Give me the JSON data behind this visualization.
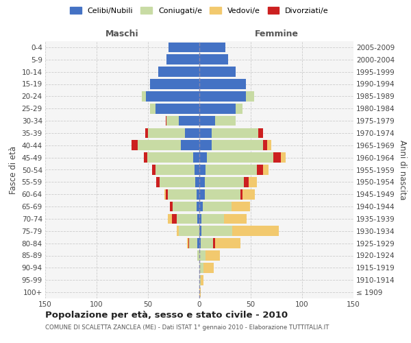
{
  "age_groups": [
    "100+",
    "95-99",
    "90-94",
    "85-89",
    "80-84",
    "75-79",
    "70-74",
    "65-69",
    "60-64",
    "55-59",
    "50-54",
    "45-49",
    "40-44",
    "35-39",
    "30-34",
    "25-29",
    "20-24",
    "15-19",
    "10-14",
    "5-9",
    "0-4"
  ],
  "birth_years": [
    "≤ 1909",
    "1910-1914",
    "1915-1919",
    "1920-1924",
    "1925-1929",
    "1930-1934",
    "1935-1939",
    "1940-1944",
    "1945-1949",
    "1950-1954",
    "1955-1959",
    "1960-1964",
    "1965-1969",
    "1970-1974",
    "1975-1979",
    "1980-1984",
    "1985-1989",
    "1990-1994",
    "1995-1999",
    "2000-2004",
    "2005-2009"
  ],
  "male": {
    "celibi": [
      0,
      0,
      0,
      0,
      2,
      0,
      2,
      3,
      3,
      4,
      5,
      6,
      18,
      14,
      20,
      43,
      52,
      48,
      40,
      32,
      30
    ],
    "coniugati": [
      0,
      0,
      0,
      2,
      8,
      20,
      20,
      23,
      28,
      35,
      38,
      45,
      42,
      36,
      12,
      5,
      4,
      0,
      0,
      0,
      0
    ],
    "vedovi": [
      0,
      0,
      0,
      0,
      1,
      2,
      4,
      0,
      1,
      0,
      0,
      0,
      0,
      0,
      0,
      0,
      0,
      0,
      0,
      0,
      0
    ],
    "divorziati": [
      0,
      0,
      0,
      0,
      1,
      0,
      5,
      3,
      2,
      3,
      3,
      3,
      6,
      3,
      1,
      0,
      0,
      0,
      0,
      0,
      0
    ]
  },
  "female": {
    "nubili": [
      0,
      0,
      0,
      0,
      1,
      2,
      2,
      3,
      5,
      5,
      6,
      7,
      12,
      12,
      15,
      35,
      45,
      45,
      35,
      28,
      25
    ],
    "coniugate": [
      0,
      1,
      4,
      6,
      12,
      30,
      22,
      28,
      35,
      38,
      50,
      65,
      50,
      45,
      20,
      7,
      8,
      0,
      0,
      0,
      0
    ],
    "vedove": [
      1,
      3,
      10,
      14,
      25,
      45,
      22,
      18,
      12,
      8,
      5,
      5,
      4,
      0,
      0,
      0,
      0,
      0,
      0,
      0,
      0
    ],
    "divorziate": [
      0,
      0,
      0,
      0,
      2,
      0,
      0,
      0,
      2,
      5,
      6,
      7,
      4,
      5,
      0,
      0,
      0,
      0,
      0,
      0,
      0
    ]
  },
  "colors": {
    "celibi_nubili": "#4472c4",
    "coniugati": "#c8dba4",
    "vedovi": "#f2c96e",
    "divorziati": "#cc2020"
  },
  "xlim": 150,
  "title": "Popolazione per età, sesso e stato civile - 2010",
  "subtitle": "COMUNE DI SCALETTA ZANCLEA (ME) - Dati ISTAT 1° gennaio 2010 - Elaborazione TUTTITALIA.IT",
  "ylabel_left": "Fasce di età",
  "ylabel_right": "Anni di nascita",
  "xlabel_left": "Maschi",
  "xlabel_right": "Femmine",
  "bg_color": "#f5f5f5",
  "grid_color": "#cccccc"
}
